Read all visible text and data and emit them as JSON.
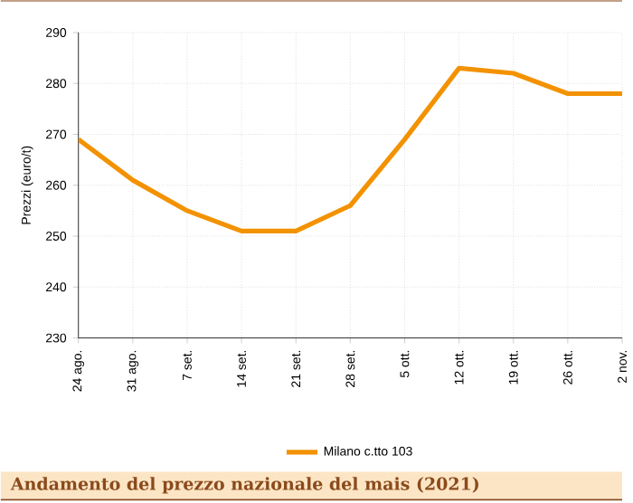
{
  "chart_data": {
    "type": "line",
    "title": "Andamento del prezzo nazionale del mais (2021)",
    "ylabel": "Prezzi (euro/t)",
    "categories": [
      "24 ago.",
      "31 ago.",
      "7 set.",
      "14 set.",
      "21 set.",
      "28 set.",
      "5 ott.",
      "12 ott.",
      "19 ott.",
      "26 ott.",
      "2 nov."
    ],
    "series": [
      {
        "name": "Milano  c.tto 103",
        "color": "#f39200",
        "values": [
          269,
          261,
          255,
          251,
          251,
          256,
          269,
          283,
          282,
          278,
          278
        ]
      }
    ],
    "ylim": [
      230,
      290
    ],
    "yticks": [
      230,
      240,
      250,
      260,
      270,
      280,
      290
    ],
    "grid": true,
    "legend": "bottom",
    "marker": "none",
    "line_style": "solid"
  }
}
